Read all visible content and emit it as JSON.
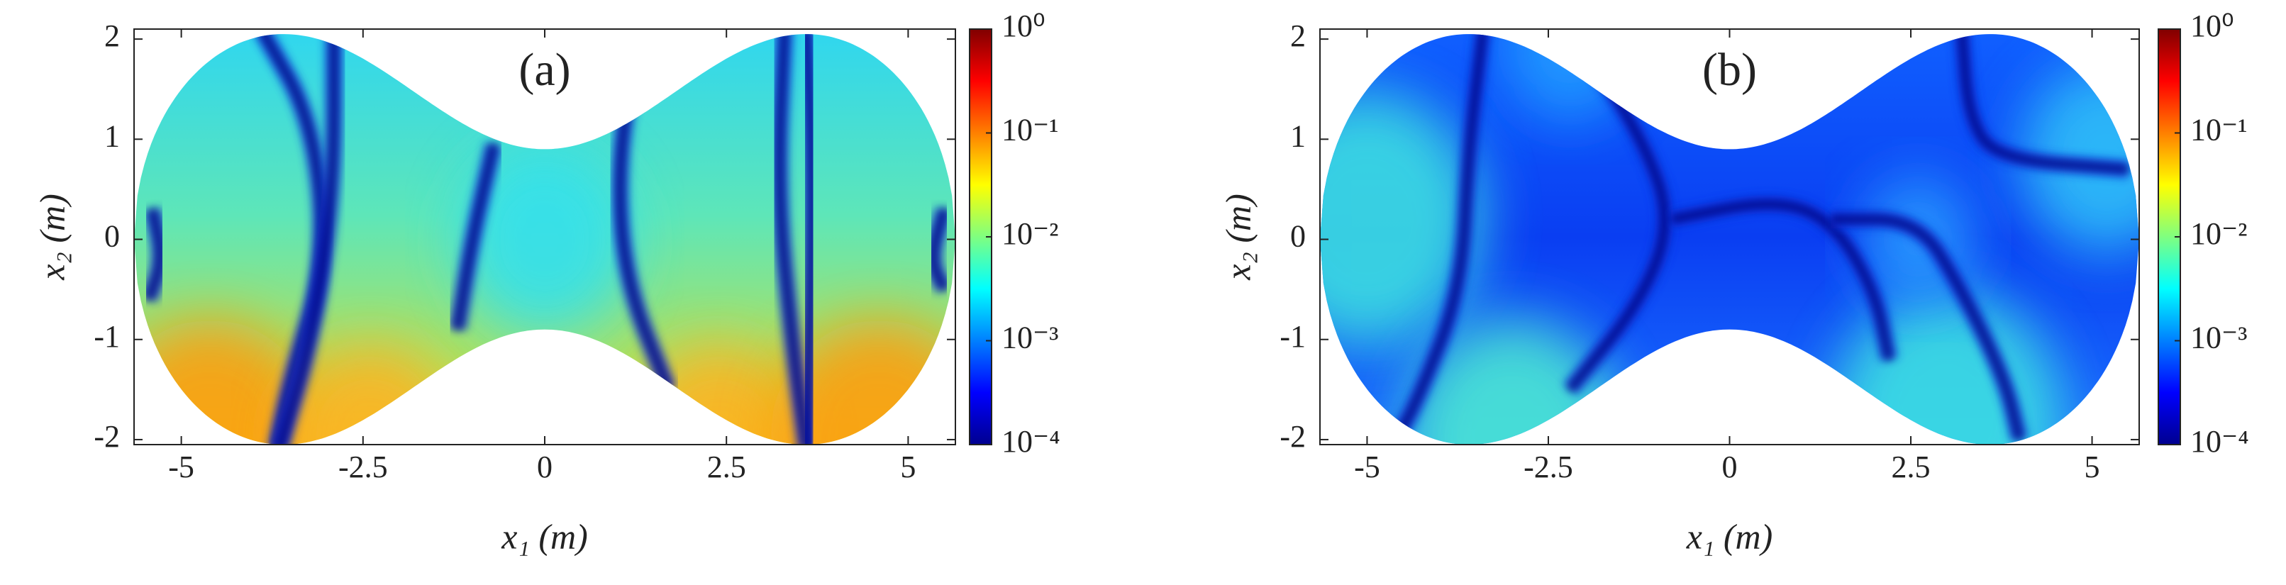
{
  "chart_data": [
    {
      "type": "heatmap",
      "title": "(a)",
      "xlabel": "x₁ (m)",
      "ylabel": "x₂ (m)",
      "xlim": [
        -5.65,
        5.65
      ],
      "ylim": [
        -2.05,
        2.1
      ],
      "xticks": [
        -5,
        -2.5,
        0,
        2.5,
        5
      ],
      "yticks": [
        -2,
        -1,
        0,
        1,
        2
      ],
      "colormap": "jet",
      "colorbar": {
        "scale": "log",
        "lim": [
          0.0001,
          1
        ],
        "ticks": [
          {
            "value": 1,
            "label": "10⁰"
          },
          {
            "value": 0.1,
            "label": "10⁻¹"
          },
          {
            "value": 0.01,
            "label": "10⁻²"
          },
          {
            "value": 0.001,
            "label": "10⁻³"
          },
          {
            "value": 0.0001,
            "label": "10⁻⁴"
          }
        ]
      }
    },
    {
      "type": "heatmap",
      "title": "(b)",
      "xlabel": "x₁ (m)",
      "ylabel": "x₂ (m)",
      "xlim": [
        -5.65,
        5.65
      ],
      "ylim": [
        -2.05,
        2.1
      ],
      "xticks": [
        -5,
        -2.5,
        0,
        2.5,
        5
      ],
      "yticks": [
        -2,
        -1,
        0,
        1,
        2
      ],
      "colormap": "jet",
      "colorbar": {
        "scale": "log",
        "lim": [
          0.0001,
          1
        ],
        "ticks": [
          {
            "value": 1,
            "label": "10⁰"
          },
          {
            "value": 0.1,
            "label": "10⁻¹"
          },
          {
            "value": 0.01,
            "label": "10⁻²"
          },
          {
            "value": 0.001,
            "label": "10⁻³"
          },
          {
            "value": 0.0001,
            "label": "10⁻⁴"
          }
        ]
      }
    }
  ]
}
